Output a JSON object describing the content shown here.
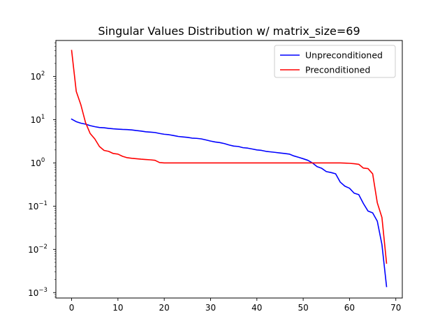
{
  "chart_data": {
    "type": "line",
    "title": "Singular Values Distribution w/ matrix_size=69",
    "xlabel": "",
    "ylabel": "",
    "xlim": [
      -3.4,
      71.4
    ],
    "ylim": [
      0.00075,
      680
    ],
    "yscale": "log",
    "x_ticks": [
      0,
      10,
      20,
      30,
      40,
      50,
      60,
      70
    ],
    "y_ticks": [
      {
        "value": 0.001,
        "base": "10",
        "exp": "−3"
      },
      {
        "value": 0.01,
        "base": "10",
        "exp": "−2"
      },
      {
        "value": 0.1,
        "base": "10",
        "exp": "−1"
      },
      {
        "value": 1,
        "base": "10",
        "exp": "0"
      },
      {
        "value": 10,
        "base": "10",
        "exp": "1"
      },
      {
        "value": 100,
        "base": "10",
        "exp": "2"
      }
    ],
    "grid": false,
    "legend_position": "top-right",
    "series": [
      {
        "name": "Unpreconditioned",
        "color": "#0000ff",
        "values": [
          10.3,
          9.0,
          8.3,
          7.9,
          7.3,
          6.9,
          6.6,
          6.5,
          6.3,
          6.15,
          6.05,
          5.95,
          5.9,
          5.8,
          5.6,
          5.45,
          5.25,
          5.15,
          5.05,
          4.8,
          4.6,
          4.5,
          4.3,
          4.1,
          4.0,
          3.9,
          3.75,
          3.7,
          3.6,
          3.4,
          3.2,
          3.05,
          2.95,
          2.8,
          2.6,
          2.45,
          2.4,
          2.25,
          2.2,
          2.1,
          2.0,
          1.95,
          1.85,
          1.8,
          1.75,
          1.7,
          1.65,
          1.6,
          1.45,
          1.35,
          1.25,
          1.15,
          1.0,
          0.82,
          0.75,
          0.63,
          0.6,
          0.56,
          0.36,
          0.29,
          0.26,
          0.2,
          0.185,
          0.115,
          0.077,
          0.07,
          0.045,
          0.013,
          0.00138
        ]
      },
      {
        "name": "Preconditioned",
        "color": "#ff0000",
        "values": [
          400,
          45,
          22,
          8.6,
          4.8,
          3.6,
          2.4,
          1.95,
          1.85,
          1.65,
          1.6,
          1.42,
          1.32,
          1.28,
          1.25,
          1.22,
          1.2,
          1.18,
          1.15,
          1.02,
          1.0,
          1.0,
          1.0,
          1.0,
          1.0,
          1.0,
          1.0,
          1.0,
          1.0,
          1.0,
          1.0,
          1.0,
          1.0,
          1.0,
          1.0,
          1.0,
          1.0,
          1.0,
          1.0,
          1.0,
          1.0,
          1.0,
          1.0,
          1.0,
          1.0,
          1.0,
          1.0,
          1.0,
          1.0,
          1.0,
          1.0,
          1.0,
          1.0,
          1.0,
          1.0,
          1.0,
          1.0,
          1.0,
          1.0,
          0.99,
          0.98,
          0.96,
          0.93,
          0.76,
          0.74,
          0.56,
          0.12,
          0.055,
          0.0048
        ]
      }
    ]
  }
}
